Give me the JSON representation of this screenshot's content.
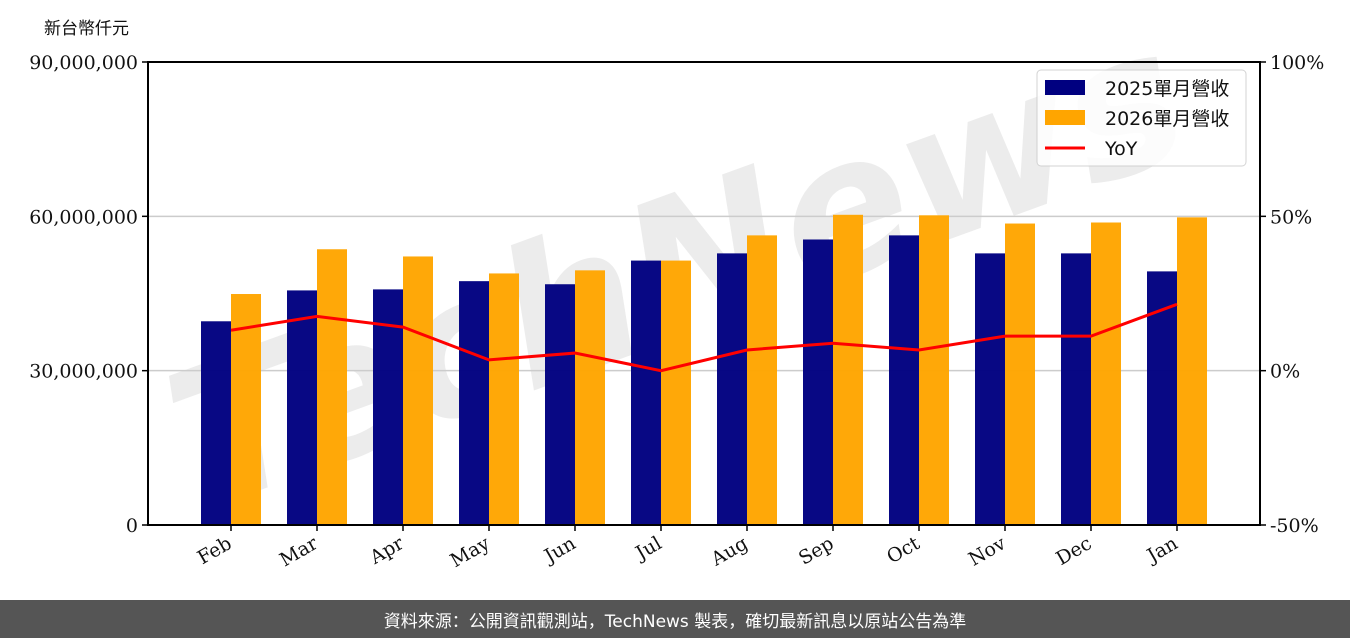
{
  "chart_data": {
    "type": "bar",
    "unit_label": "新台幣仟元",
    "categories": [
      "Feb",
      "Mar",
      "Apr",
      "May",
      "Jun",
      "Jul",
      "Aug",
      "Sep",
      "Oct",
      "Nov",
      "Dec",
      "Jan"
    ],
    "series": [
      {
        "name": "2025單月營收",
        "kind": "bar",
        "axis": "left",
        "color": "#000080",
        "values": [
          39600000,
          45600000,
          45800000,
          47400000,
          46800000,
          51400000,
          52800000,
          55500000,
          56300000,
          52800000,
          52800000,
          49300000
        ]
      },
      {
        "name": "2026單月營收",
        "kind": "bar",
        "axis": "left",
        "color": "#FFA500",
        "values": [
          44900000,
          53600000,
          52200000,
          48900000,
          49500000,
          51400000,
          56300000,
          60300000,
          60200000,
          58600000,
          58800000,
          59800000
        ]
      },
      {
        "name": "YoY",
        "kind": "line",
        "axis": "right",
        "color": "#FF0000",
        "values": [
          13.1,
          17.6,
          14.1,
          3.5,
          5.7,
          0.0,
          6.7,
          8.9,
          6.7,
          11.2,
          11.2,
          21.5
        ]
      }
    ],
    "left_axis": {
      "ylim": [
        0,
        90000000
      ],
      "ticks": [
        "0",
        "30,000,000",
        "60,000,000",
        "90,000,000"
      ],
      "tick_values": [
        0,
        30000000,
        60000000,
        90000000
      ]
    },
    "right_axis": {
      "ylim": [
        -50,
        100
      ],
      "ticks": [
        "-50%",
        "0%",
        "50%",
        "100%"
      ],
      "tick_values": [
        -50,
        0,
        50,
        100
      ]
    },
    "grid": "horizontal",
    "legend": "top-right"
  },
  "footer": {
    "source_text": "資料來源：公開資訊觀測站，TechNews 製表，確切最新訊息以原站公告為準"
  },
  "watermark": "TechNews"
}
